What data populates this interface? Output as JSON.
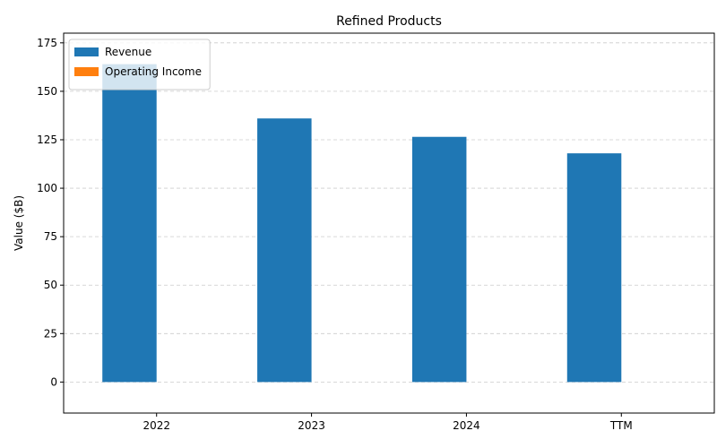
{
  "chart_data": {
    "type": "bar",
    "title": "Refined Products",
    "ylabel": "Value ($B)",
    "xlabel": "",
    "categories": [
      "2022",
      "2023",
      "2024",
      "TTM"
    ],
    "series": [
      {
        "name": "Revenue",
        "values": [
          164,
          136,
          126.5,
          118
        ],
        "color": "#1f77b4"
      },
      {
        "name": "Operating Income",
        "values": [
          0,
          0,
          0,
          0
        ],
        "color": "#ff7f0e"
      }
    ],
    "ylim": [
      -16,
      180
    ],
    "yticks": [
      0,
      25,
      50,
      75,
      100,
      125,
      150,
      175
    ],
    "grid": true,
    "legend_position": "top-left"
  }
}
